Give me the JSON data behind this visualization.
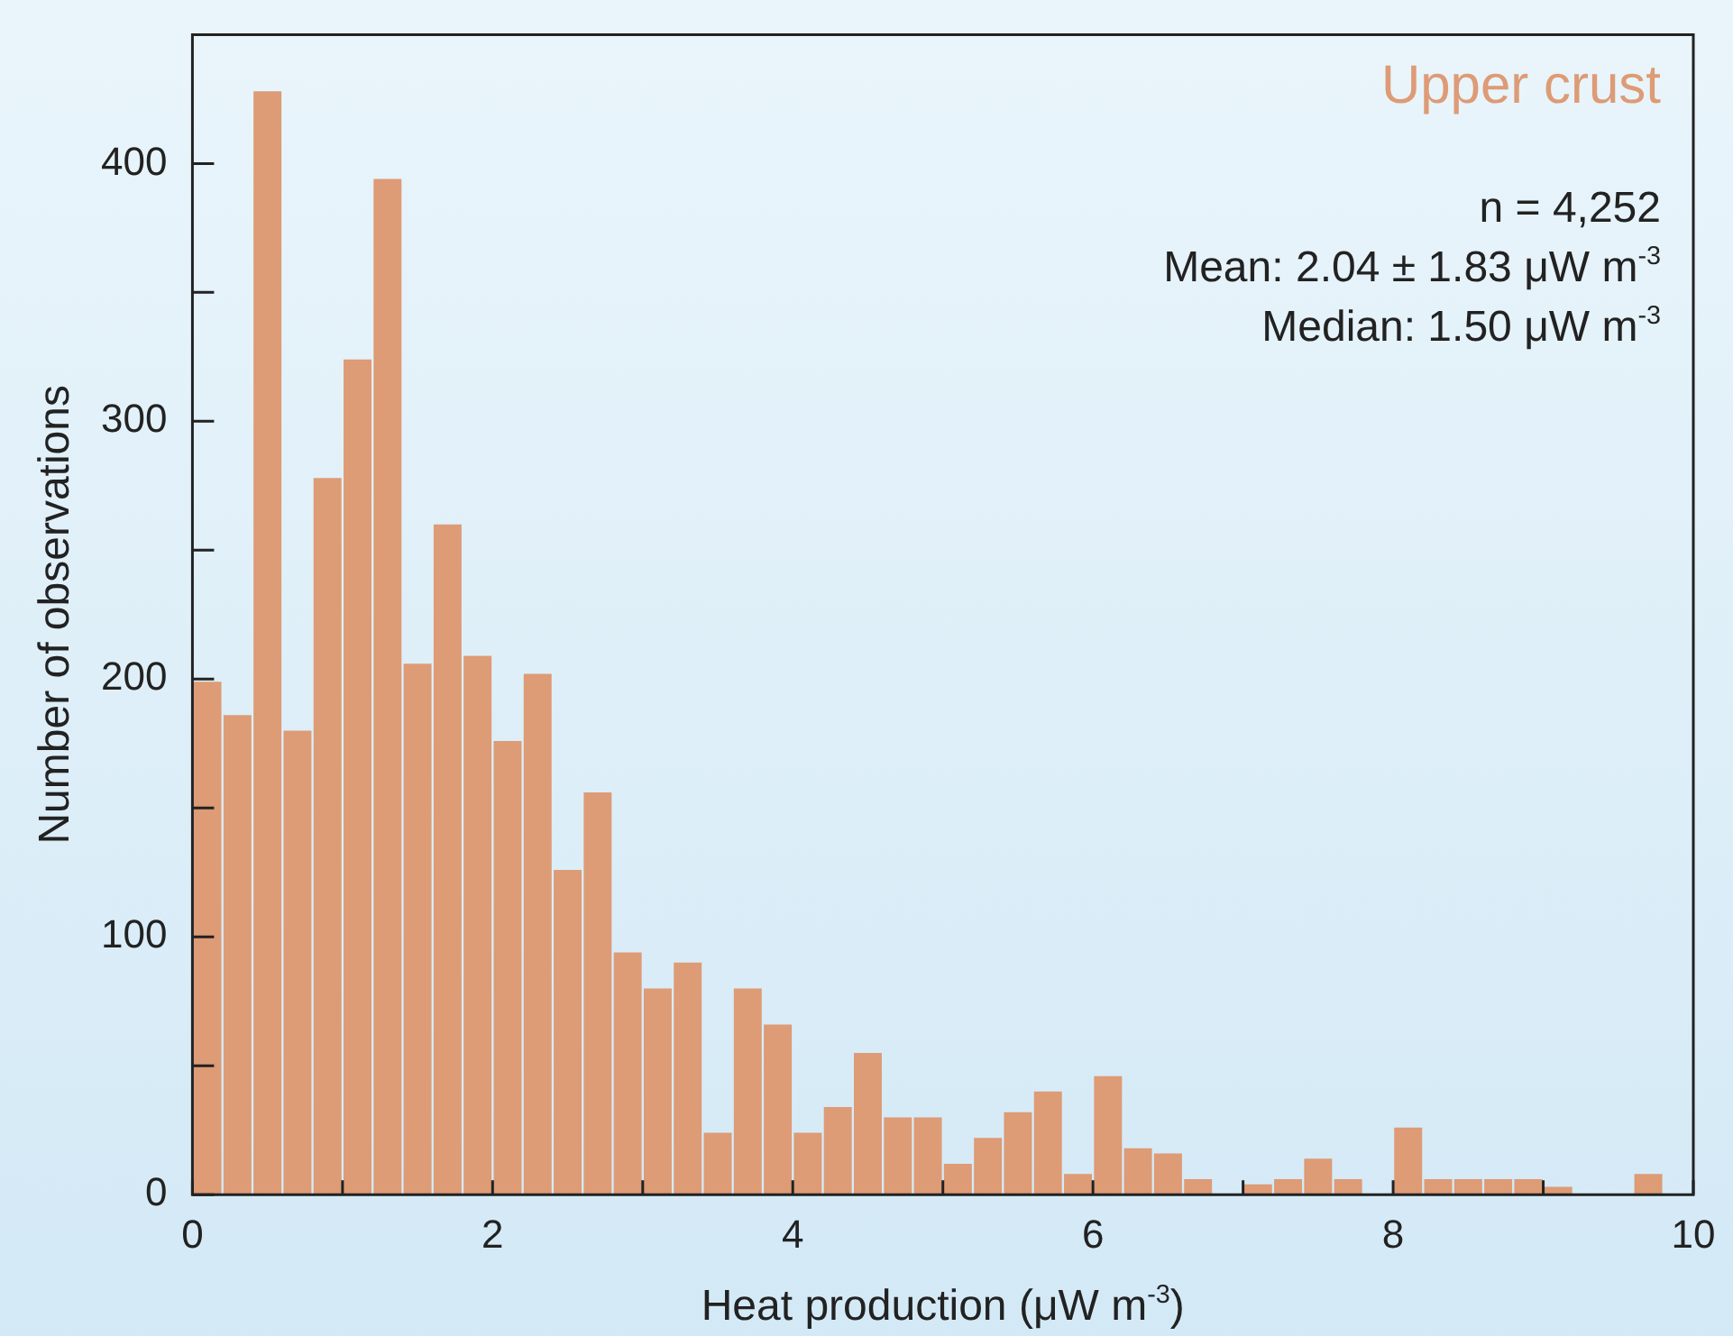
{
  "chart_data": {
    "type": "histogram",
    "title": "Upper crust",
    "xlabel": "Heat production (μW m$^{-3}$)",
    "ylabel": "Number of observations",
    "annotations": [
      "n = 4,252",
      "Mean: 2.04 ± 1.83 μW m$^{-3}$",
      "Median: 1.50 μW m$^{-3}$"
    ],
    "bins": [
      0,
      0.2,
      0.4,
      0.6,
      0.8,
      1,
      1.2,
      1.4,
      1.6,
      1.8,
      2,
      2.2,
      2.4,
      2.6,
      2.8,
      3,
      3.2,
      3.4,
      3.6,
      3.8,
      4,
      4.2,
      4.4,
      4.6,
      4.8,
      5,
      5.2,
      5.4,
      5.6,
      5.8,
      6,
      6.2,
      6.4,
      6.6,
      6.8,
      7,
      7.2,
      7.4,
      7.6,
      7.8,
      8,
      8.2,
      8.4,
      8.6,
      8.8,
      9,
      9.2,
      9.4,
      9.6,
      9.8,
      10
    ],
    "values": [
      199,
      186,
      428,
      180,
      278,
      324,
      394,
      206,
      260,
      209,
      176,
      202,
      126,
      156,
      94,
      80,
      90,
      24,
      80,
      66,
      24,
      34,
      55,
      30,
      30,
      12,
      22,
      32,
      40,
      8,
      46,
      18,
      16,
      6,
      0,
      4,
      6,
      14,
      6,
      0,
      26,
      6,
      6,
      6,
      6,
      3,
      0,
      0,
      8,
      0
    ],
    "color": "#dd9b76",
    "xlim": [
      0,
      10
    ],
    "xticks": [
      0,
      {
        "value": 1,
        "label": null
      },
      2,
      {
        "value": 3,
        "label": null
      },
      4,
      {
        "value": 5,
        "label": null
      },
      6,
      {
        "value": 7,
        "label": null
      },
      8,
      {
        "value": 9,
        "label": null
      },
      10
    ],
    "ylim": [
      0,
      450
    ],
    "yticks": [
      0,
      {
        "value": 50,
        "label": null
      },
      100,
      {
        "value": 150,
        "label": null
      },
      200,
      {
        "value": 250,
        "label": null
      },
      300,
      {
        "value": 350,
        "label": null
      },
      400
    ]
  }
}
